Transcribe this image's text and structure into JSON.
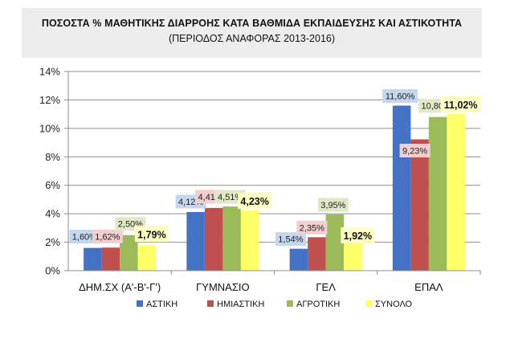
{
  "chart_data": {
    "type": "bar",
    "title": "ΠΟΣΟΣΤΑ % ΜΑΘΗΤΙΚΗΣ ΔΙΑΡΡΟΗΣ ΚΑΤΑ ΒΑΘΜΙΔΑ ΕΚΠΑΙΔΕΥΣΗΣ ΚΑΙ ΑΣΤΙΚΟΤΗΤΑ",
    "subtitle": "(ΠΕΡΙΟΔΟΣ ΑΝΑΦΟΡΑΣ 2013-2016)",
    "categories": [
      "ΔΗΜ.ΣΧ (Α'-Β'-Γ')",
      "ΓΥΜΝΑΣΙΟ",
      "ΓΕΛ",
      "ΕΠΑΛ"
    ],
    "series": [
      {
        "name": "ΑΣΤΙΚΗ",
        "color": "#4472c4",
        "label_bg": "#c5d7ee",
        "values": [
          1.6,
          4.12,
          1.54,
          11.6
        ],
        "labels": [
          "1,60%",
          "4,12%",
          "1,54%",
          "11,60%"
        ]
      },
      {
        "name": "ΗΜΙΑΣΤΙΚΗ",
        "color": "#c0504d",
        "label_bg": "#f3cece",
        "values": [
          1.62,
          4.41,
          2.35,
          9.23
        ],
        "labels": [
          "1,62%",
          "4,41%",
          "2,35%",
          "9,23%"
        ]
      },
      {
        "name": "ΑΓΡΟΤΙΚΗ",
        "color": "#9bbb59",
        "label_bg": "#dfe9c5",
        "values": [
          2.5,
          4.51,
          3.95,
          10.8
        ],
        "labels": [
          "2,50%",
          "4,51%",
          "3,95%",
          "10,80%"
        ]
      },
      {
        "name": "ΣΥΝΟΛΟ",
        "color": "#ffff66",
        "label_bg": "#ffffc4",
        "values": [
          1.79,
          4.23,
          1.92,
          11.02
        ],
        "labels": [
          "1,79%",
          "4,23%",
          "1,92%",
          "11,02%"
        ]
      }
    ],
    "y_ticks": [
      "0%",
      "2%",
      "4%",
      "6%",
      "8%",
      "10%",
      "12%",
      "14%"
    ],
    "ylim": [
      0,
      14
    ],
    "ylabel": "",
    "xlabel": "",
    "grid": true,
    "legend_position": "bottom"
  }
}
